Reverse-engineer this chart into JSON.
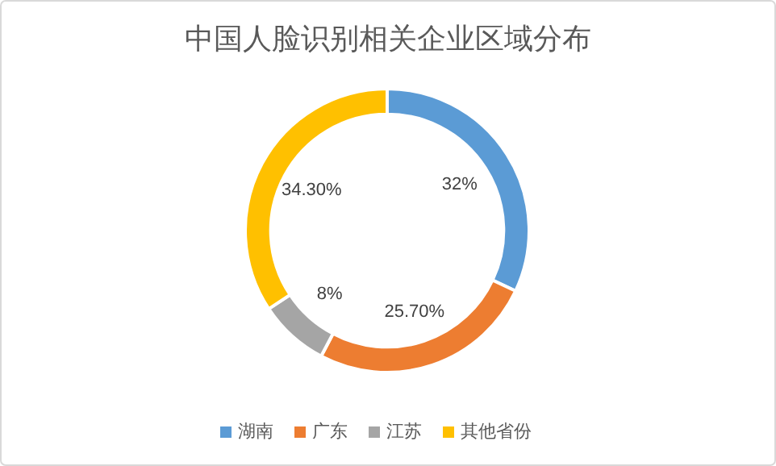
{
  "chart_data": {
    "type": "donut",
    "title": "中国人脸识别相关企业区域分布",
    "categories": [
      "湖南",
      "广东",
      "江苏",
      "其他省份"
    ],
    "values": [
      32,
      25.7,
      8,
      34.3
    ],
    "colors": [
      "#5b9bd5",
      "#ed7d31",
      "#a5a5a5",
      "#ffc000"
    ],
    "value_labels": [
      "32%",
      "25.70%",
      "8%",
      "34.30%"
    ],
    "legend": "bottom"
  }
}
